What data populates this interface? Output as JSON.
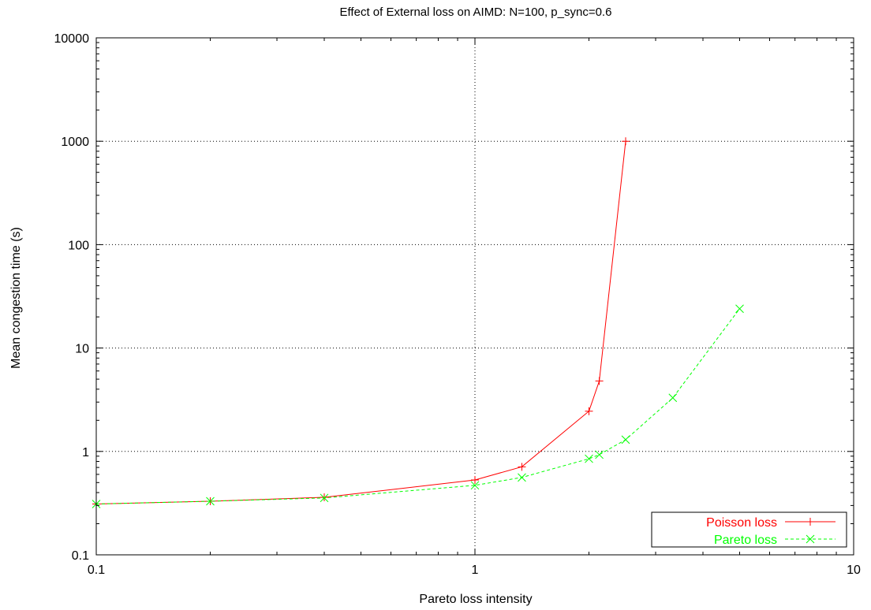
{
  "chart_data": {
    "type": "line",
    "title": "Effect of External loss on AIMD: N=100, p_sync=0.6",
    "xlabel": "Pareto loss intensity",
    "ylabel": "Mean congestion time (s)",
    "x_scale": "log",
    "y_scale": "log",
    "xlim": [
      0.1,
      10
    ],
    "ylim": [
      0.1,
      10000
    ],
    "x_ticks": [
      {
        "value": 0.1,
        "label": "0.1"
      },
      {
        "value": 1,
        "label": "1"
      },
      {
        "value": 10,
        "label": "10"
      }
    ],
    "y_ticks": [
      {
        "value": 0.1,
        "label": "0.1"
      },
      {
        "value": 1,
        "label": "1"
      },
      {
        "value": 10,
        "label": "10"
      },
      {
        "value": 100,
        "label": "100"
      },
      {
        "value": 1000,
        "label": "1000"
      },
      {
        "value": 10000,
        "label": "10000"
      }
    ],
    "grid": true,
    "legend_position": "bottom-right",
    "series": [
      {
        "name": "Poisson loss",
        "color": "#ff0000",
        "marker": "plus",
        "line_style": "solid",
        "x": [
          0.1,
          0.2,
          0.4,
          1.0,
          1.33,
          2.0,
          2.13,
          2.5
        ],
        "y": [
          0.31,
          0.33,
          0.36,
          0.53,
          0.71,
          2.45,
          4.8,
          1000
        ]
      },
      {
        "name": "Pareto loss",
        "color": "#00ff00",
        "marker": "cross",
        "line_style": "dashed",
        "x": [
          0.1,
          0.2,
          0.4,
          1.0,
          1.33,
          2.0,
          2.13,
          2.5,
          3.33,
          5.0
        ],
        "y": [
          0.31,
          0.33,
          0.355,
          0.47,
          0.56,
          0.85,
          0.93,
          1.3,
          3.3,
          24
        ]
      }
    ]
  }
}
